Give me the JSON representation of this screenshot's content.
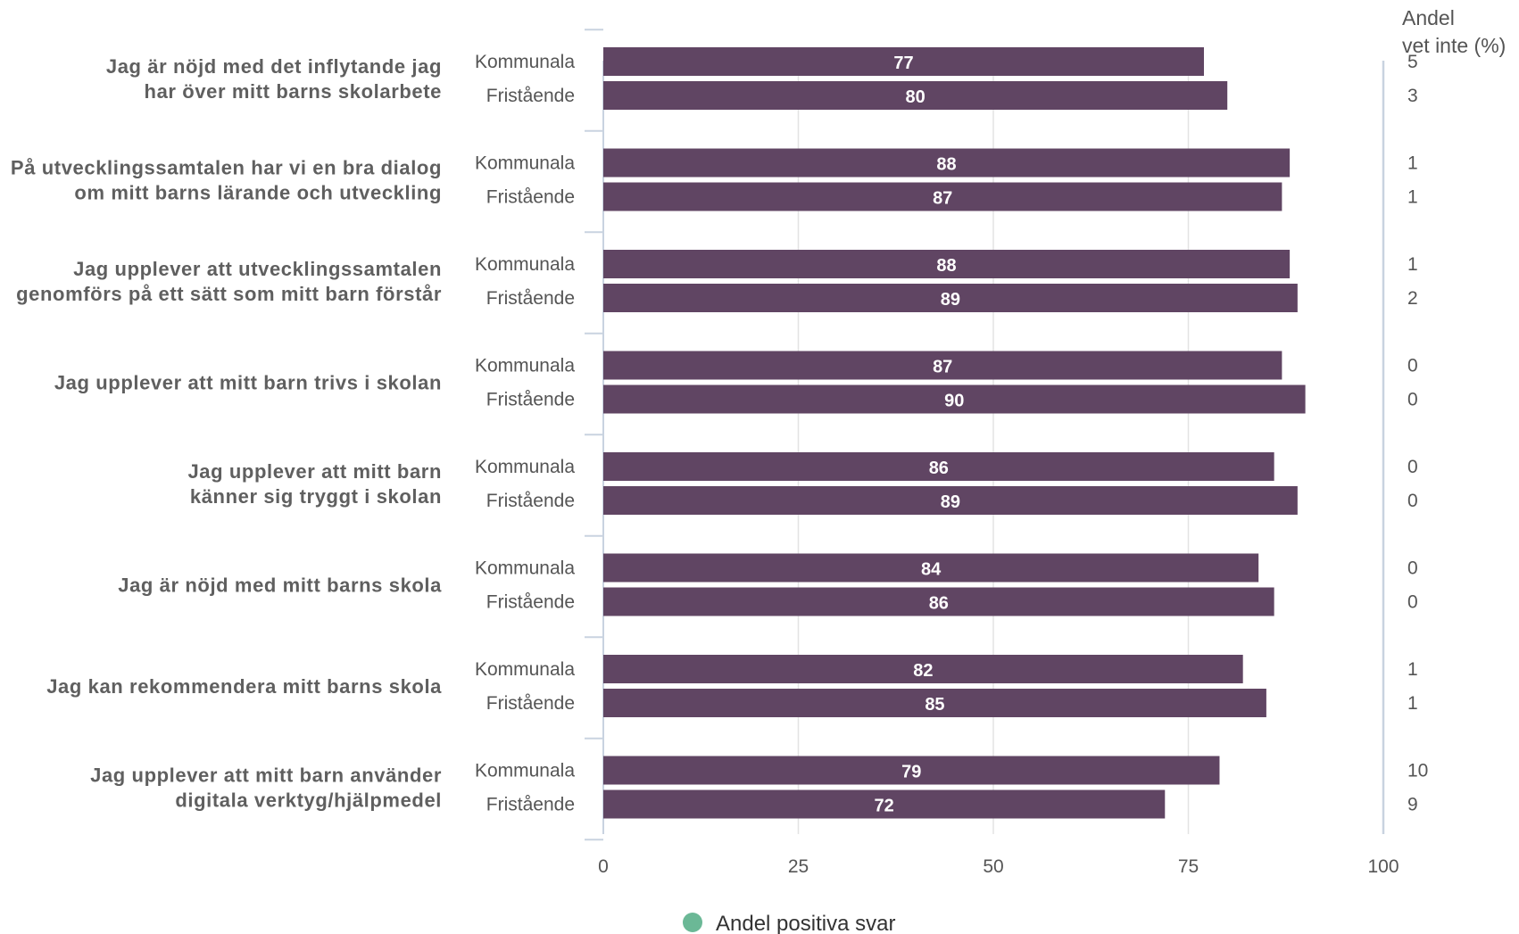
{
  "chart_data": {
    "type": "bar",
    "orientation": "horizontal",
    "xlim": [
      0,
      100
    ],
    "xticks": [
      "0",
      "25",
      "50",
      "75",
      "100"
    ],
    "grid": true,
    "side_header_lines": [
      "Andel",
      "vet inte (%)"
    ],
    "groups": [
      "Kommunala",
      "Fristående"
    ],
    "items": [
      {
        "label_lines": [
          "Jag är nöjd med det inflytande jag",
          "har över mitt barns skolarbete"
        ],
        "values": [
          77,
          80
        ],
        "dont_know": [
          5,
          3
        ]
      },
      {
        "label_lines": [
          "På utvecklingssamtalen har vi en bra dialog",
          "om mitt barns lärande och utveckling"
        ],
        "values": [
          88,
          87
        ],
        "dont_know": [
          1,
          1
        ]
      },
      {
        "label_lines": [
          "Jag upplever att utvecklingssamtalen",
          "genomförs på ett sätt som mitt barn förstår"
        ],
        "values": [
          88,
          89
        ],
        "dont_know": [
          1,
          2
        ]
      },
      {
        "label_lines": [
          "Jag upplever att mitt barn trivs i skolan"
        ],
        "values": [
          87,
          90
        ],
        "dont_know": [
          0,
          0
        ]
      },
      {
        "label_lines": [
          "Jag upplever att mitt barn",
          "känner sig tryggt i skolan"
        ],
        "values": [
          86,
          89
        ],
        "dont_know": [
          0,
          0
        ]
      },
      {
        "label_lines": [
          "Jag är nöjd med mitt barns skola"
        ],
        "values": [
          84,
          86
        ],
        "dont_know": [
          0,
          0
        ]
      },
      {
        "label_lines": [
          "Jag kan rekommendera mitt barns skola"
        ],
        "values": [
          82,
          85
        ],
        "dont_know": [
          1,
          1
        ]
      },
      {
        "label_lines": [
          "Jag upplever att mitt barn använder",
          "digitala verktyg/hjälpmedel"
        ],
        "values": [
          79,
          72
        ],
        "dont_know": [
          10,
          9
        ]
      }
    ],
    "legend": {
      "label": "Andel positiva svar",
      "position": "bottom",
      "marker_color": "#6bb896"
    },
    "colors": {
      "bar": "#604563",
      "grid": "#e3e3e3",
      "axis": "#c9d3e0",
      "bar_label": "#ffffff"
    }
  }
}
